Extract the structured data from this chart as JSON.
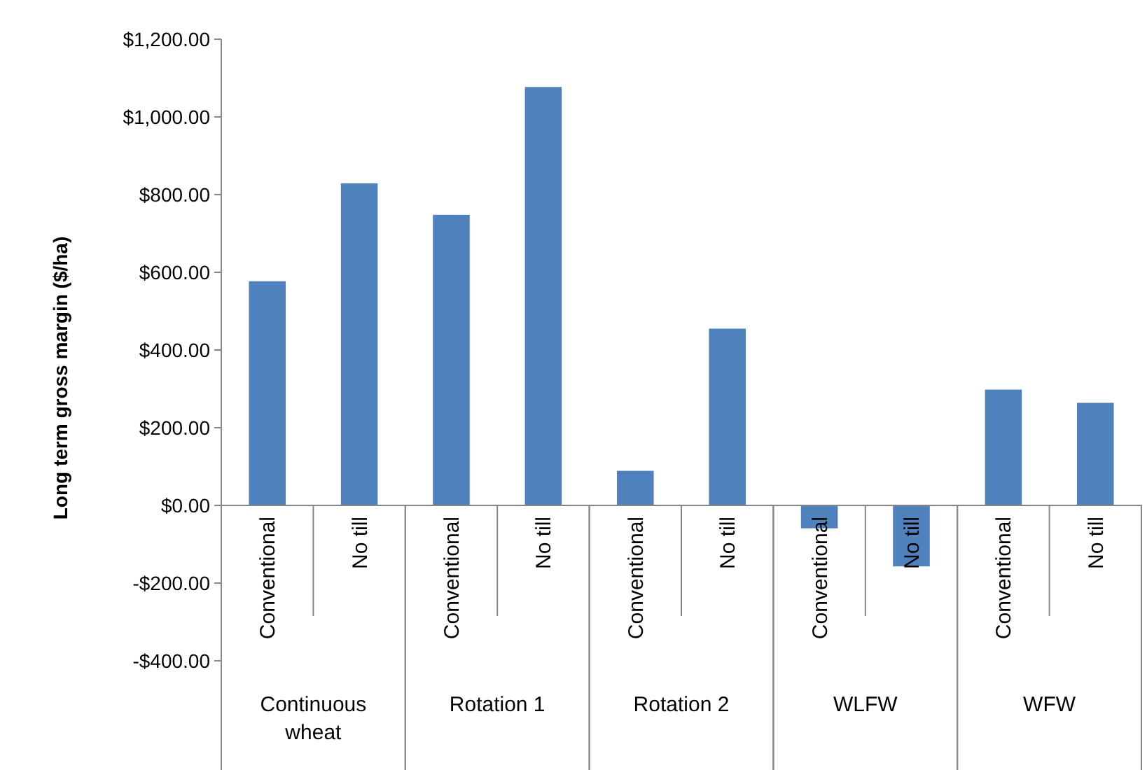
{
  "chart_data": {
    "type": "bar",
    "ylabel": "Long term gross margin ($/ha)",
    "categories": [
      "Conventional",
      "No till",
      "Conventional",
      "No till",
      "Conventional",
      "No till",
      "Conventional",
      "No till",
      "Conventional",
      "No till"
    ],
    "values": [
      577,
      829,
      748,
      1077,
      89,
      455,
      -59,
      -157,
      298,
      264
    ],
    "color": "#4f81bd",
    "ylim": [
      -400,
      1200
    ],
    "yticks": [
      {
        "value": -400,
        "label": "-$400.00"
      },
      {
        "value": -200,
        "label": "-$200.00"
      },
      {
        "value": 0,
        "label": "$0.00"
      },
      {
        "value": 200,
        "label": "$200.00"
      },
      {
        "value": 400,
        "label": "$400.00"
      },
      {
        "value": 600,
        "label": "$600.00"
      },
      {
        "value": 800,
        "label": "$800.00"
      },
      {
        "value": 1000,
        "label": "$1,000.00"
      },
      {
        "value": 1200,
        "label": "$1,200.00"
      }
    ],
    "annotations": [
      "Continuous wheat",
      "Rotation 1",
      "Rotation 2",
      "WLFW",
      "WFW"
    ],
    "grid": false
  }
}
